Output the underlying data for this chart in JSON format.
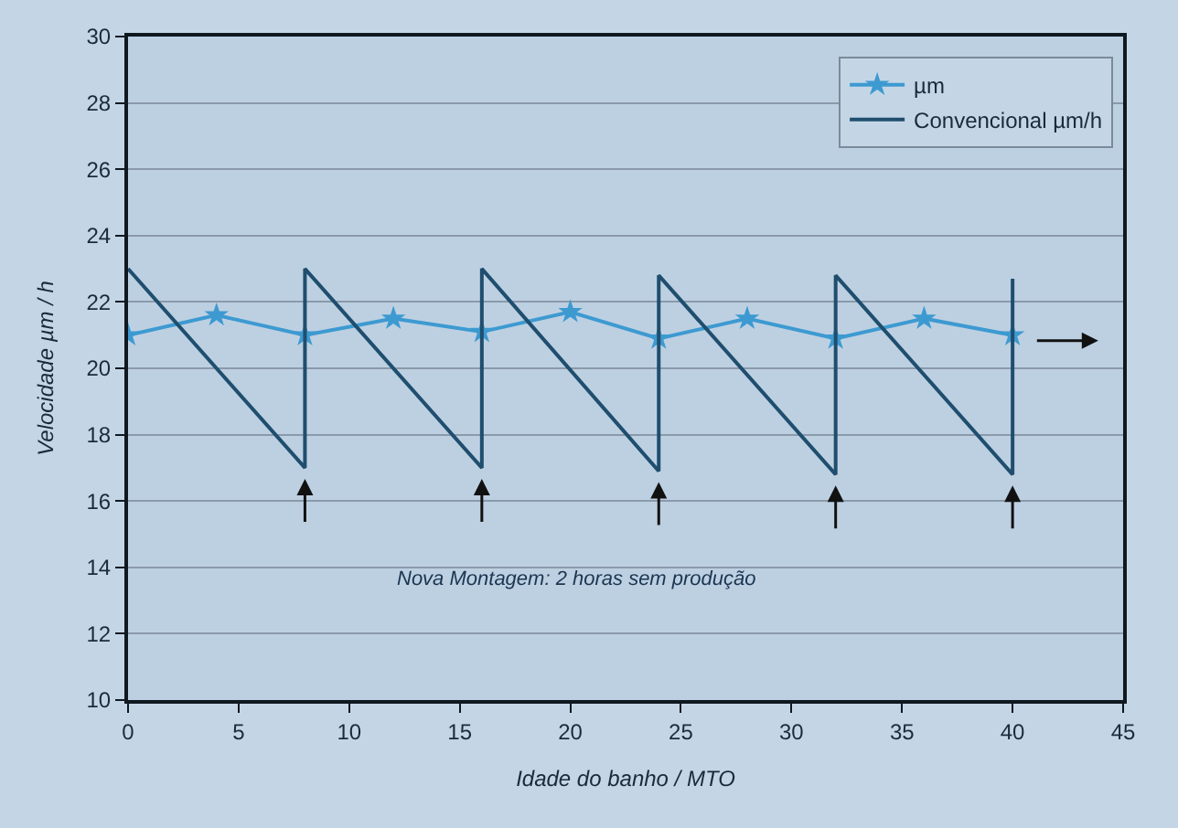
{
  "chart_data": {
    "type": "line",
    "xlabel": "Idade do banho / MTO",
    "ylabel": "Velocidade µm / h",
    "xlim": [
      0,
      45
    ],
    "xticks": [
      0,
      5,
      10,
      15,
      20,
      25,
      30,
      35,
      40,
      45
    ],
    "ylim": [
      10,
      30
    ],
    "yticks": [
      10,
      12,
      14,
      16,
      18,
      20,
      22,
      24,
      26,
      28,
      30
    ],
    "grid": "y",
    "legend": "top right",
    "series": [
      {
        "name": "µm",
        "color": "#3d9ad1",
        "marker": "star",
        "x": [
          0,
          4,
          8,
          12,
          16,
          20,
          24,
          28,
          32,
          36,
          40
        ],
        "values": [
          21.0,
          21.6,
          21.0,
          21.5,
          21.1,
          21.7,
          20.9,
          21.5,
          20.9,
          21.5,
          21.0
        ]
      },
      {
        "name": "Convencional µm/h",
        "color": "#1f4e6e",
        "marker": "none",
        "x": [
          0,
          8,
          8,
          16,
          16,
          24,
          24,
          32,
          32,
          40,
          40
        ],
        "values": [
          23.0,
          17.0,
          23.0,
          17.0,
          23.0,
          16.9,
          22.8,
          16.8,
          22.8,
          16.8,
          22.7
        ]
      }
    ],
    "annotations": [
      "Nova Montagem: 2 horas sem produção"
    ]
  }
}
